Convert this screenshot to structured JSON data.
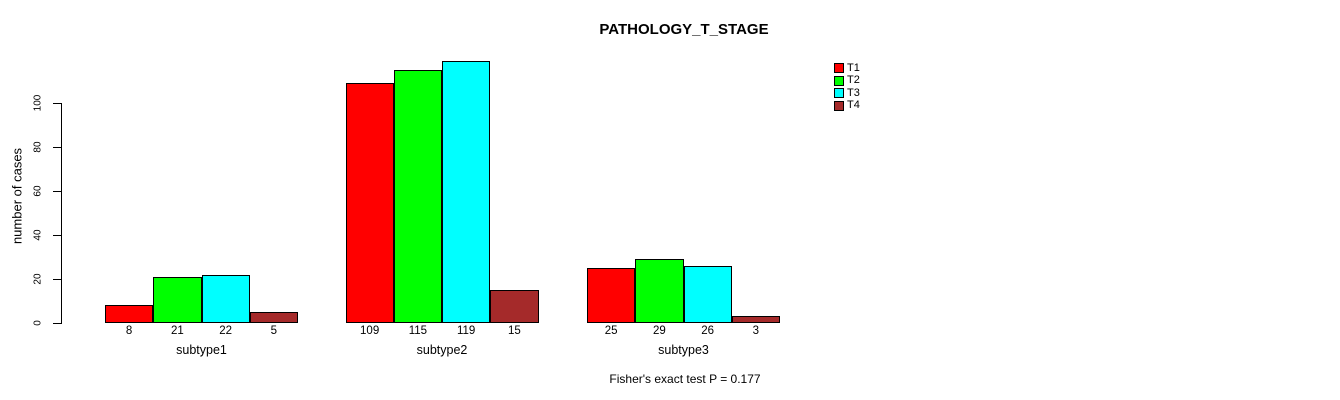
{
  "chart_data": {
    "type": "bar",
    "title": "PATHOLOGY_T_STAGE",
    "ylabel": "number of cases",
    "xlabel": "",
    "categories": [
      "subtype1",
      "subtype2",
      "subtype3"
    ],
    "series": [
      {
        "name": "T1",
        "color": "#ff0000",
        "values": [
          8,
          109,
          25
        ]
      },
      {
        "name": "T2",
        "color": "#00ff00",
        "values": [
          21,
          115,
          29
        ]
      },
      {
        "name": "T3",
        "color": "#00ffff",
        "values": [
          22,
          119,
          26
        ]
      },
      {
        "name": "T4",
        "color": "#a52a2a",
        "values": [
          5,
          15,
          3
        ]
      }
    ],
    "yticks": [
      0,
      20,
      40,
      60,
      80,
      100
    ],
    "ylim": [
      0,
      124
    ],
    "grid": false,
    "bar_value_labels": true,
    "legend_position": "top-right",
    "annotation": "Fisher's exact test P = 0.177",
    "colors": {
      "background": "#ffffff",
      "axis": "#000000",
      "text": "#000000"
    }
  }
}
